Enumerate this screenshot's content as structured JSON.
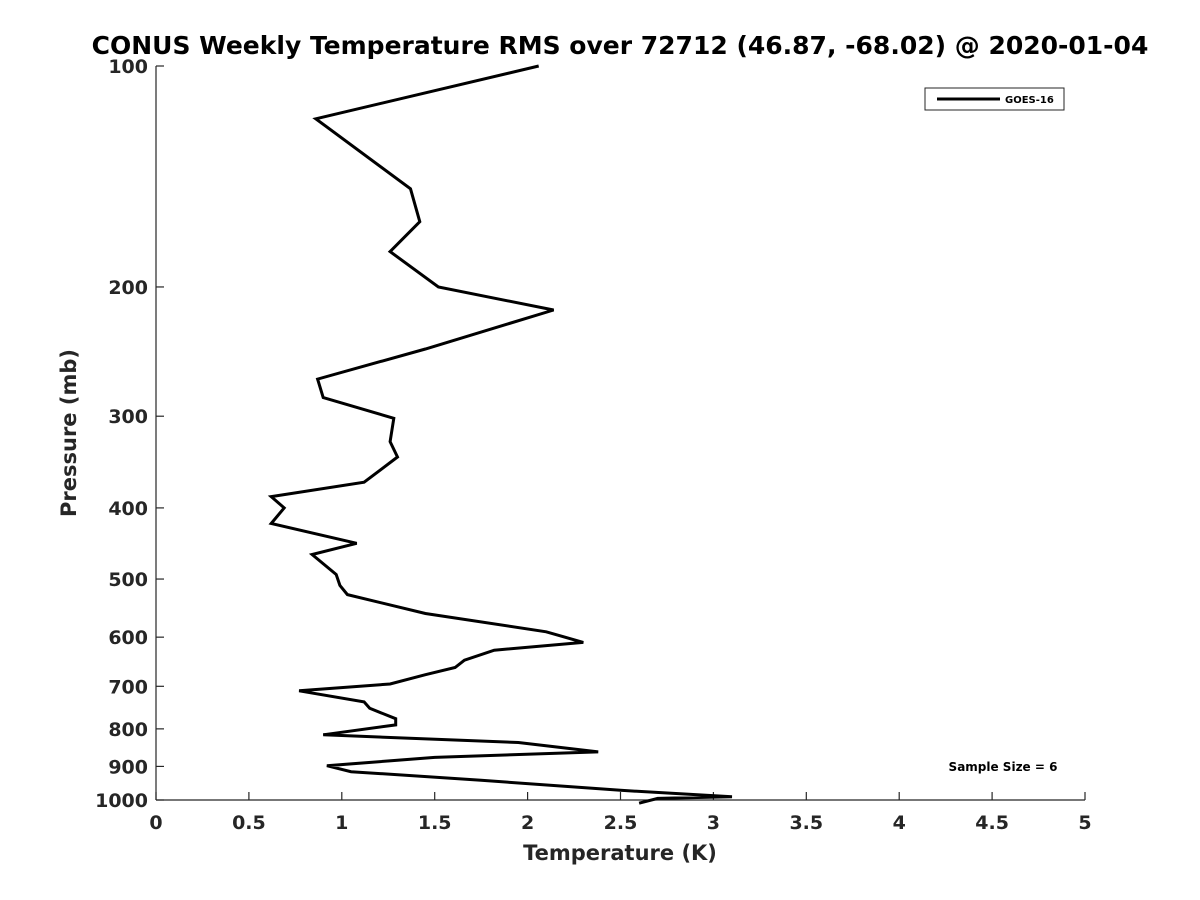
{
  "chart_data": {
    "type": "line",
    "title": "CONUS Weekly Temperature RMS over 72712 (46.87, -68.02) @ 2020-01-04",
    "xlabel": "Temperature (K)",
    "ylabel": "Pressure (mb)",
    "xlim": [
      0,
      5
    ],
    "ylim": [
      100,
      1000
    ],
    "yscale": "log",
    "y_reversed": true,
    "x_ticks": [
      0,
      0.5,
      1,
      1.5,
      2,
      2.5,
      3,
      3.5,
      4,
      4.5,
      5
    ],
    "x_tick_labels": [
      "0",
      "0.5",
      "1",
      "1.5",
      "2",
      "2.5",
      "3",
      "3.5",
      "4",
      "4.5",
      "5"
    ],
    "y_ticks": [
      100,
      200,
      300,
      400,
      500,
      600,
      700,
      800,
      900,
      1000
    ],
    "y_tick_labels": [
      "100",
      "200",
      "300",
      "400",
      "500",
      "600",
      "700",
      "800",
      "900",
      "1000"
    ],
    "grid": false,
    "legend_position": "top-right",
    "series": [
      {
        "name": "GOES-16",
        "color": "#000000",
        "x": [
          2.06,
          0.86,
          1.37,
          1.42,
          1.26,
          1.52,
          2.14,
          1.45,
          0.87,
          0.9,
          1.28,
          1.26,
          1.3,
          1.12,
          0.62,
          0.69,
          0.62,
          1.08,
          0.84,
          0.97,
          0.99,
          1.03,
          1.45,
          2.1,
          2.3,
          1.82,
          1.66,
          1.61,
          1.45,
          1.26,
          0.77,
          1.12,
          1.15,
          1.29,
          1.29,
          0.9,
          1.95,
          2.38,
          1.5,
          0.92,
          1.05,
          1.75,
          2.5,
          3.1,
          2.7,
          2.6
        ],
        "y": [
          100,
          118,
          147,
          163,
          179,
          200,
          215,
          243,
          267,
          283,
          302,
          325,
          341,
          369,
          386,
          400,
          420,
          447,
          463,
          493,
          510,
          525,
          557,
          590,
          610,
          625,
          645,
          660,
          675,
          695,
          710,
          735,
          750,
          775,
          790,
          815,
          835,
          860,
          875,
          898,
          915,
          940,
          970,
          990,
          995,
          1010
        ]
      }
    ],
    "annotations": [
      {
        "text": "Sample Size = 6",
        "position": "bottom-right"
      }
    ]
  }
}
